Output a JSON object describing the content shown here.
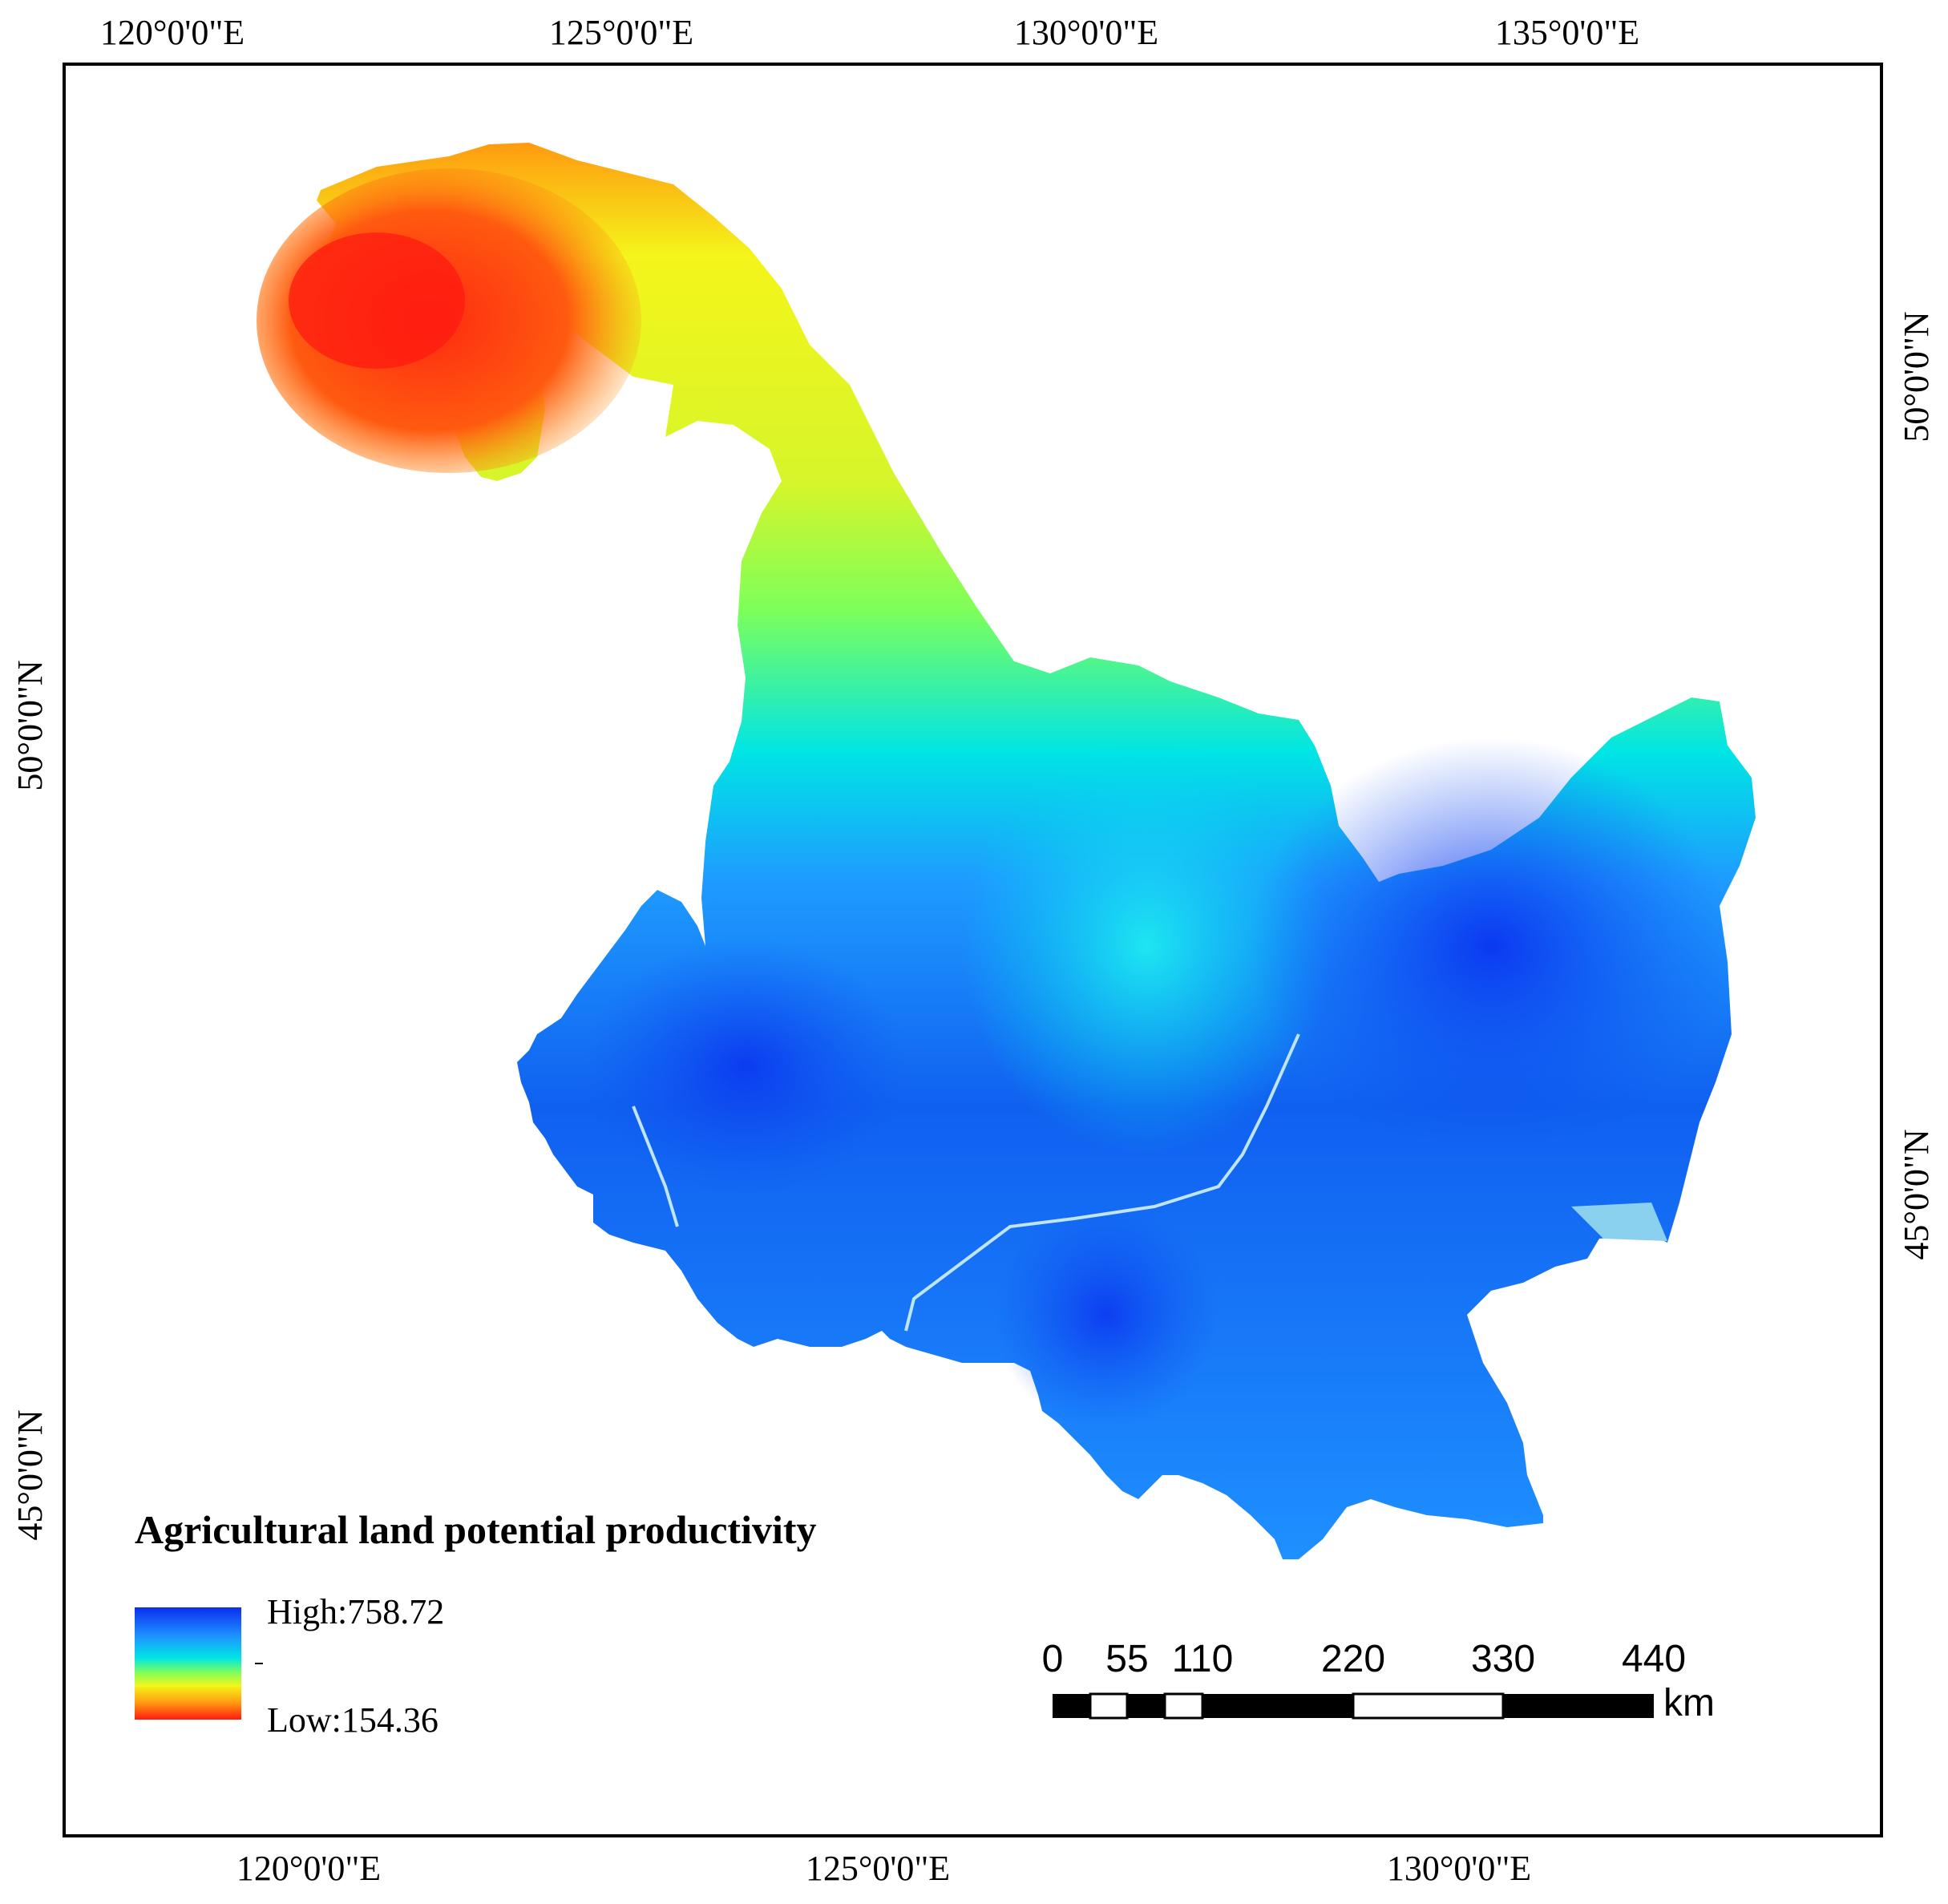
{
  "map": {
    "top_longitudes": [
      "120°0'0\"E",
      "125°0'0\"E",
      "130°0'0\"E",
      "135°0'0\"E"
    ],
    "bottom_longitudes": [
      "120°0'0\"E",
      "125°0'0\"E",
      "130°0'0\"E"
    ],
    "left_latitudes": [
      "50°0'0\"N",
      "45°0'0\"N"
    ],
    "right_latitudes": [
      "50°0'0\"N",
      "45°0'0\"N"
    ],
    "colors": {
      "high": "#0a2df0",
      "mid_high": "#1e90ff",
      "mid": "#00e5e5",
      "mid_low": "#7dff5a",
      "yellow": "#f4f51a",
      "orange": "#ff9a10",
      "low": "#ff1a10",
      "water": "#8ad0ef"
    }
  },
  "legend": {
    "title": "Agricultural land potential productivity",
    "high_label": "High:758.72",
    "low_label": "Low:154.36"
  },
  "scale_bar": {
    "labels": [
      "0",
      "55",
      "110",
      "220",
      "330",
      "440"
    ],
    "unit": "km"
  }
}
